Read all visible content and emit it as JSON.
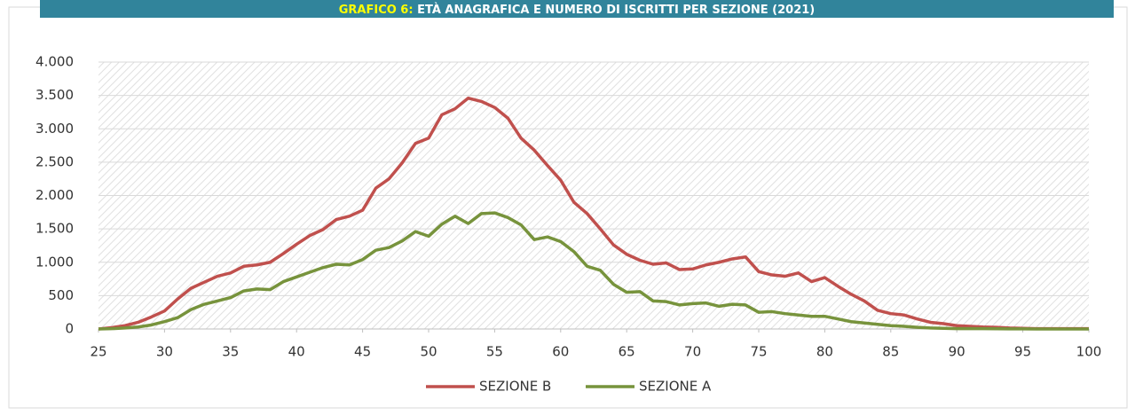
{
  "chart_data": {
    "type": "line",
    "title_label": "GRAFICO 6:",
    "title": "ETÀ ANAGRAFICA E NUMERO DI ISCRITTI PER SEZIONE (2021)",
    "x": [
      25,
      26,
      27,
      28,
      29,
      30,
      31,
      32,
      33,
      34,
      35,
      36,
      37,
      38,
      39,
      40,
      41,
      42,
      43,
      44,
      45,
      46,
      47,
      48,
      49,
      50,
      51,
      52,
      53,
      54,
      55,
      56,
      57,
      58,
      59,
      60,
      61,
      62,
      63,
      64,
      65,
      66,
      67,
      68,
      69,
      70,
      71,
      72,
      73,
      74,
      75,
      76,
      77,
      78,
      79,
      80,
      81,
      82,
      83,
      84,
      85,
      86,
      87,
      88,
      89,
      90,
      91,
      92,
      93,
      94,
      95,
      96,
      97,
      98,
      99,
      100
    ],
    "series": [
      {
        "name": "SEZIONE B",
        "color": "#c0504d",
        "values": [
          0,
          20,
          50,
          100,
          180,
          270,
          450,
          610,
          700,
          790,
          840,
          940,
          960,
          1000,
          1130,
          1270,
          1400,
          1490,
          1640,
          1690,
          1780,
          2110,
          2250,
          2490,
          2780,
          2860,
          3210,
          3300,
          3460,
          3410,
          3320,
          3160,
          2860,
          2680,
          2450,
          2230,
          1900,
          1730,
          1500,
          1260,
          1120,
          1030,
          970,
          990,
          890,
          900,
          960,
          1000,
          1050,
          1080,
          860,
          810,
          790,
          840,
          710,
          770,
          640,
          520,
          420,
          280,
          230,
          210,
          150,
          100,
          80,
          50,
          40,
          30,
          25,
          15,
          10,
          5,
          5,
          5,
          5,
          5
        ]
      },
      {
        "name": "SEZIONE A",
        "color": "#77933c",
        "values": [
          0,
          5,
          15,
          30,
          60,
          110,
          170,
          290,
          370,
          420,
          470,
          570,
          600,
          590,
          710,
          780,
          850,
          920,
          970,
          960,
          1040,
          1180,
          1220,
          1320,
          1460,
          1390,
          1570,
          1690,
          1580,
          1730,
          1740,
          1670,
          1560,
          1340,
          1380,
          1310,
          1160,
          940,
          880,
          670,
          550,
          560,
          420,
          410,
          360,
          380,
          390,
          340,
          370,
          360,
          250,
          260,
          230,
          210,
          190,
          190,
          150,
          110,
          90,
          70,
          50,
          40,
          25,
          15,
          10,
          5,
          5,
          5,
          3,
          2,
          1,
          0,
          0,
          0,
          0,
          0
        ]
      }
    ],
    "xlim": [
      25,
      100
    ],
    "xticks": [
      25,
      30,
      35,
      40,
      45,
      50,
      55,
      60,
      65,
      70,
      75,
      80,
      85,
      90,
      95,
      100
    ],
    "ylim": [
      0,
      4000
    ],
    "yticks": [
      0,
      500,
      {
        "value": 1000,
        "label": "1.000"
      },
      {
        "value": 1500,
        "label": "1.500"
      },
      {
        "value": 2000,
        "label": "2.000"
      },
      {
        "value": 2500,
        "label": "2.500"
      },
      {
        "value": 3000,
        "label": "3.000"
      },
      {
        "value": 3500,
        "label": "3.500"
      },
      {
        "value": 4000,
        "label": "4.000"
      }
    ],
    "grid": true,
    "legend": "bottom"
  }
}
